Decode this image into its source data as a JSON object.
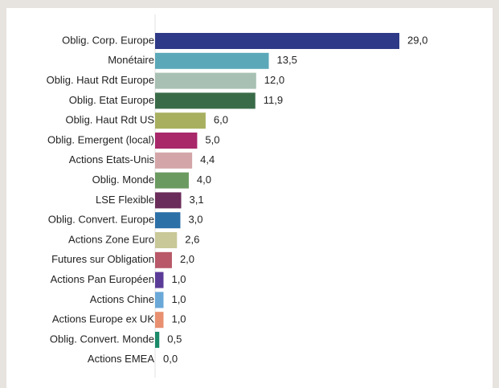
{
  "chart_data": {
    "type": "barh",
    "categories": [
      "Oblig. Corp. Europe",
      "Monétaire",
      "Oblig. Haut Rdt Europe",
      "Oblig. Etat Europe",
      "Oblig. Haut Rdt US",
      "Oblig. Emergent (local)",
      "Actions Etats-Unis",
      "Oblig. Monde",
      "LSE Flexible",
      "Oblig. Convert. Europe",
      "Actions Zone Euro",
      "Futures sur Obligation",
      "Actions Pan Européen",
      "Actions Chine",
      "Actions Europe ex UK",
      "Oblig. Convert. Monde",
      "Actions EMEA"
    ],
    "values": [
      29.0,
      13.5,
      12.0,
      11.9,
      6.0,
      5.0,
      4.4,
      4.0,
      3.1,
      3.0,
      2.6,
      2.0,
      1.0,
      1.0,
      1.0,
      0.5,
      0.0
    ],
    "value_labels": [
      "29,0",
      "13,5",
      "12,0",
      "11,9",
      "6,0",
      "5,0",
      "4,4",
      "4,0",
      "3,1",
      "3,0",
      "2,6",
      "2,0",
      "1,0",
      "1,0",
      "1,0",
      "0,5",
      "0,0"
    ],
    "colors": [
      "#2e3a87",
      "#5ba8b8",
      "#a8c0b4",
      "#3a6b48",
      "#a8b060",
      "#a8286a",
      "#d4a5a8",
      "#6a9a60",
      "#6a2c5a",
      "#2c70a8",
      "#c8c898",
      "#b85868",
      "#5a3c98",
      "#6aa8d8",
      "#e89070",
      "#1a8a68",
      "#888888"
    ]
  }
}
